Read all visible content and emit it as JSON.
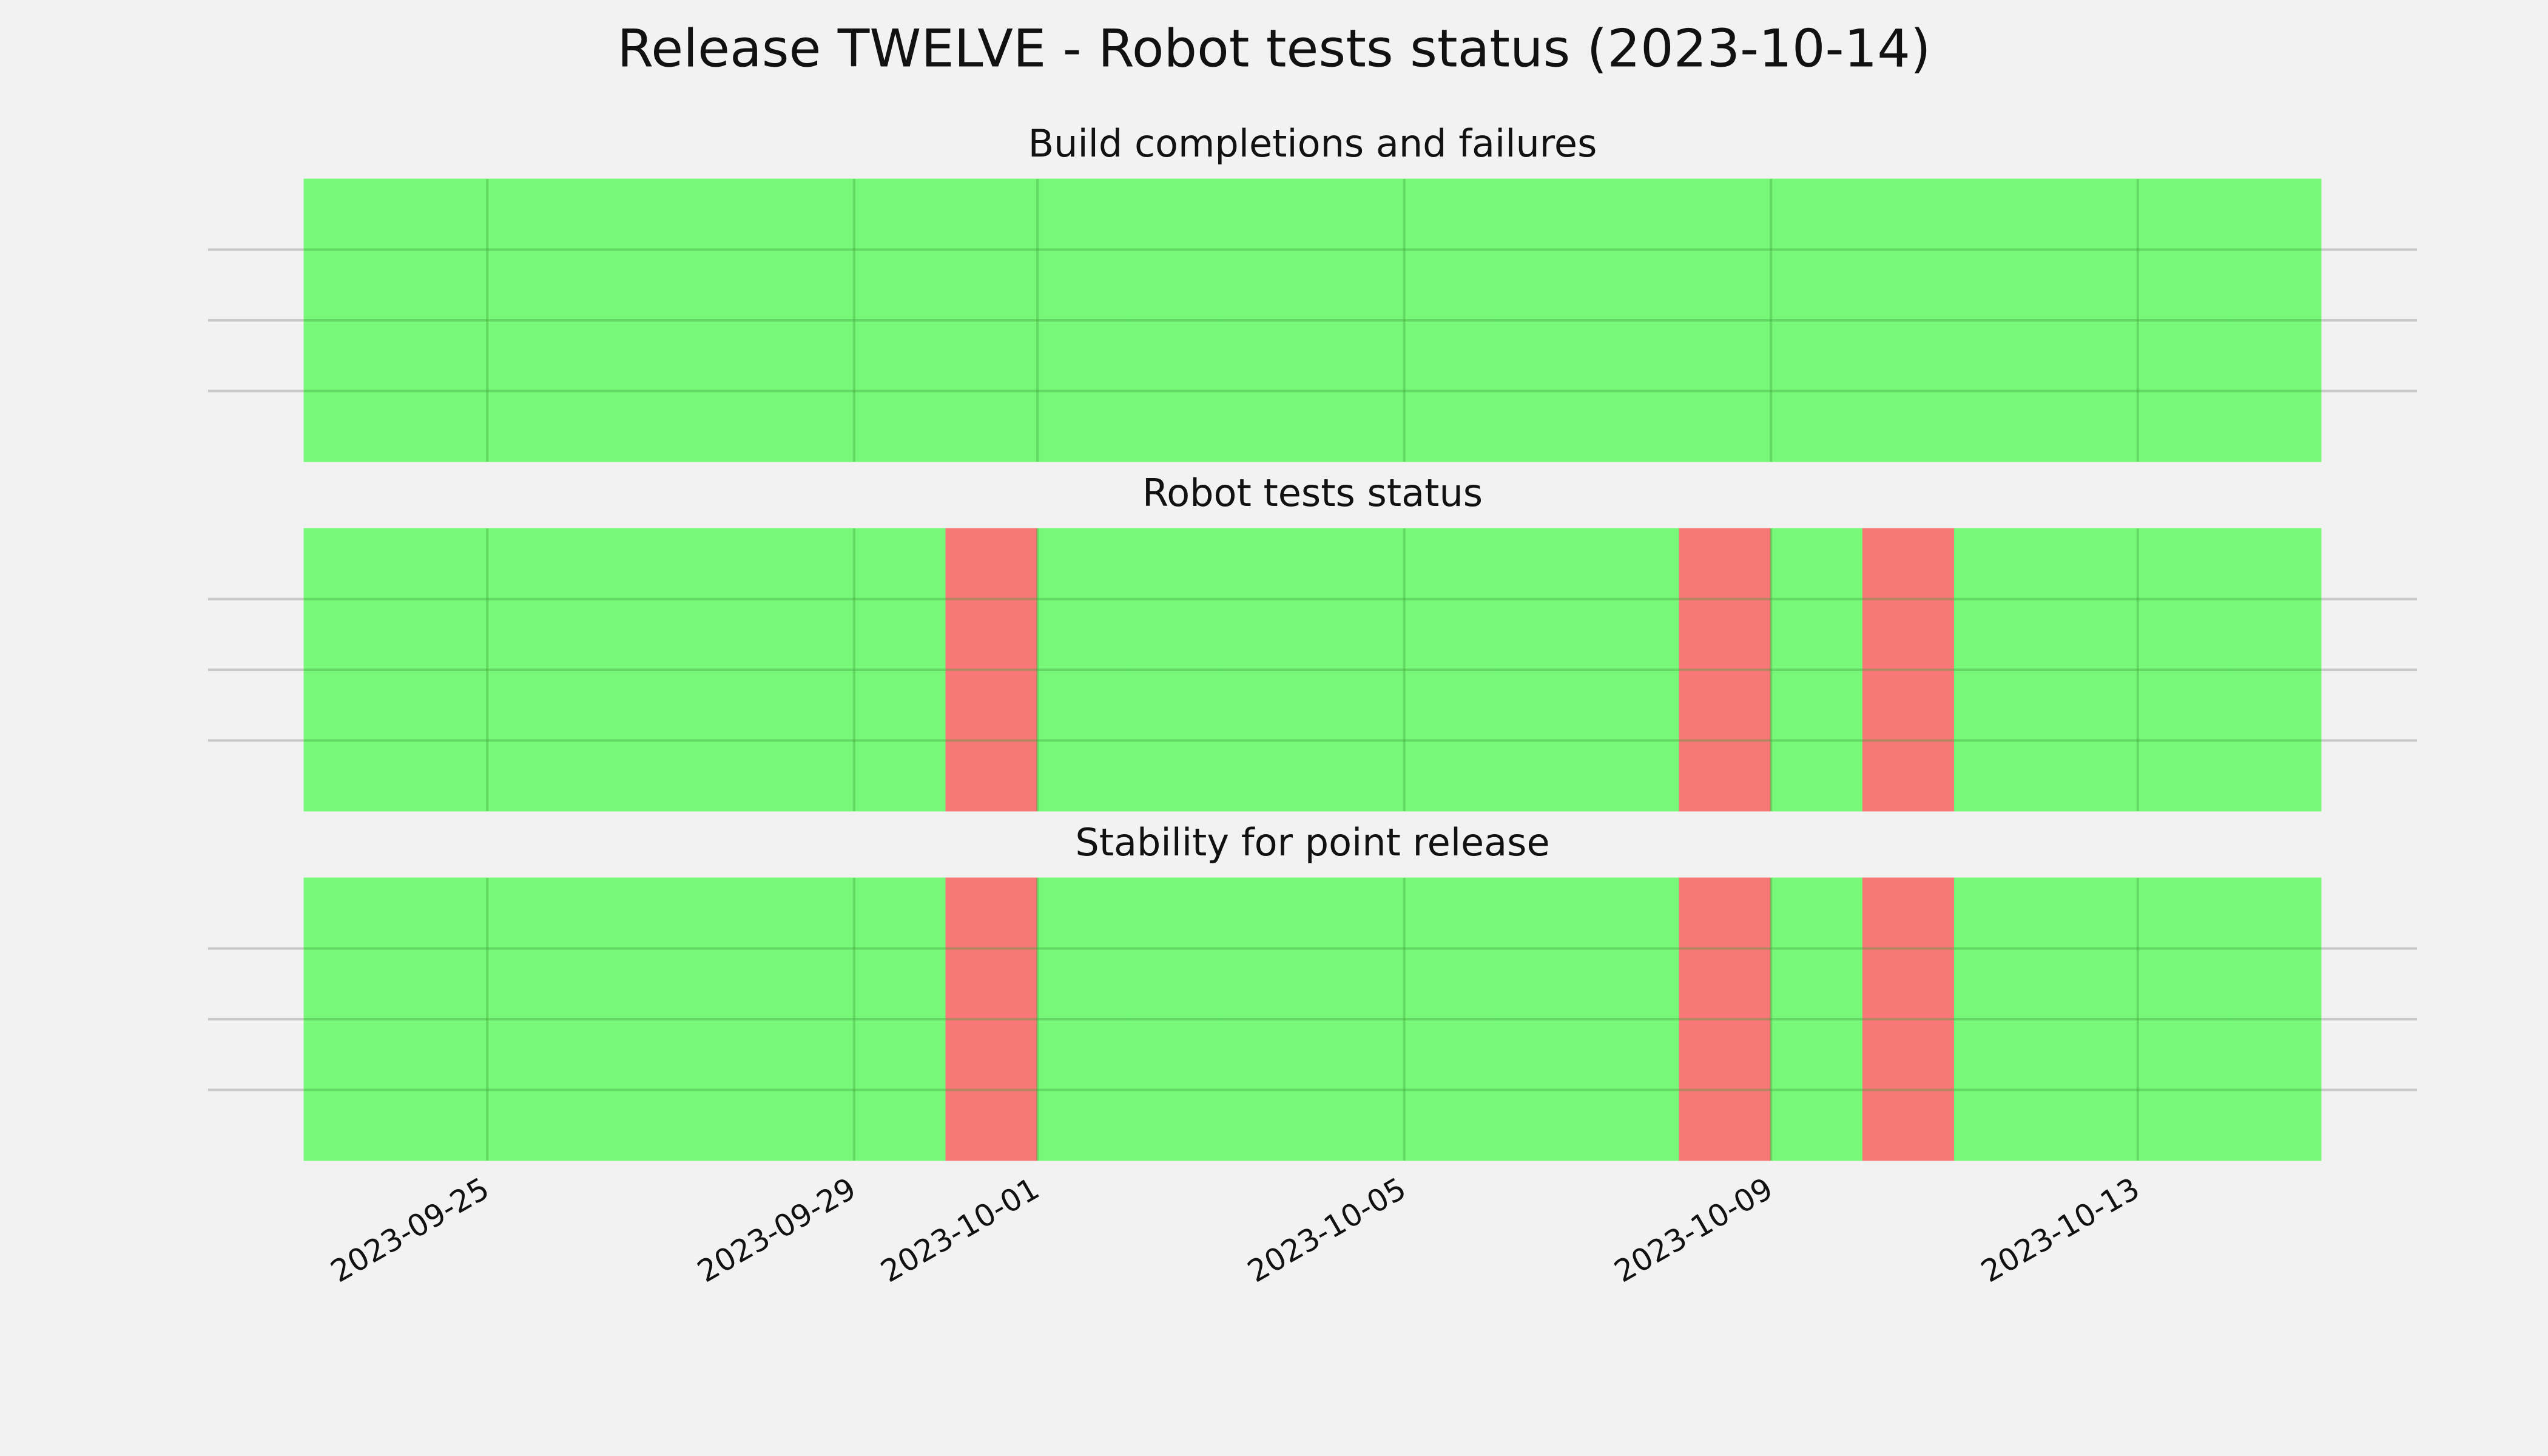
{
  "title": "Release TWELVE - Robot tests status (2023-10-14)",
  "chart_data": [
    {
      "type": "bar",
      "title": "Build completions and failures",
      "x": [
        "2023-09-23",
        "2023-09-24",
        "2023-09-25",
        "2023-09-26",
        "2023-09-27",
        "2023-09-28",
        "2023-09-29",
        "2023-09-30",
        "2023-10-01",
        "2023-10-02",
        "2023-10-03",
        "2023-10-04",
        "2023-10-05",
        "2023-10-06",
        "2023-10-07",
        "2023-10-08",
        "2023-10-09",
        "2023-10-10",
        "2023-10-11",
        "2023-10-12",
        "2023-10-13",
        "2023-10-14"
      ],
      "series": [
        {
          "color": "#78f878",
          "values": [
            1,
            1,
            1,
            1,
            1,
            1,
            1,
            1,
            1,
            1,
            1,
            1,
            1,
            1,
            1,
            1,
            1,
            1,
            1,
            1,
            1,
            1
          ]
        },
        {
          "color": "#f87878",
          "values": [
            0,
            0,
            0,
            0,
            0,
            0,
            0,
            0,
            0,
            0,
            0,
            0,
            0,
            0,
            0,
            0,
            0,
            0,
            0,
            0,
            0,
            0
          ]
        }
      ],
      "xlim": [
        "2023-09-23",
        "2023-10-15"
      ],
      "xticks": [
        "2023-09-25",
        "2023-09-29",
        "2023-10-01",
        "2023-10-05",
        "2023-10-09",
        "2023-10-13"
      ],
      "ylim": [
        0,
        1
      ],
      "yticks": [
        0.25,
        0.5,
        0.75
      ],
      "grid": true
    },
    {
      "type": "bar",
      "title": "Robot tests status",
      "x": [
        "2023-09-23",
        "2023-09-24",
        "2023-09-25",
        "2023-09-26",
        "2023-09-27",
        "2023-09-28",
        "2023-09-29",
        "2023-09-30",
        "2023-10-01",
        "2023-10-02",
        "2023-10-03",
        "2023-10-04",
        "2023-10-05",
        "2023-10-06",
        "2023-10-07",
        "2023-10-08",
        "2023-10-09",
        "2023-10-10",
        "2023-10-11",
        "2023-10-12",
        "2023-10-13",
        "2023-10-14"
      ],
      "series": [
        {
          "color": "#78f878",
          "values": [
            1,
            1,
            1,
            1,
            1,
            1,
            1,
            0,
            1,
            1,
            1,
            1,
            1,
            1,
            1,
            0,
            1,
            0,
            1,
            1,
            1,
            1
          ]
        },
        {
          "color": "#f87878",
          "values": [
            0,
            0,
            0,
            0,
            0,
            0,
            0,
            1,
            0,
            0,
            0,
            0,
            0,
            0,
            0,
            1,
            0,
            1,
            0,
            0,
            0,
            0
          ]
        }
      ],
      "xlim": [
        "2023-09-23",
        "2023-10-15"
      ],
      "xticks": [
        "2023-09-25",
        "2023-09-29",
        "2023-10-01",
        "2023-10-05",
        "2023-10-09",
        "2023-10-13"
      ],
      "ylim": [
        0,
        1
      ],
      "yticks": [
        0.25,
        0.5,
        0.75
      ],
      "grid": true
    },
    {
      "type": "bar",
      "title": "Stability for point release",
      "x": [
        "2023-09-23",
        "2023-09-24",
        "2023-09-25",
        "2023-09-26",
        "2023-09-27",
        "2023-09-28",
        "2023-09-29",
        "2023-09-30",
        "2023-10-01",
        "2023-10-02",
        "2023-10-03",
        "2023-10-04",
        "2023-10-05",
        "2023-10-06",
        "2023-10-07",
        "2023-10-08",
        "2023-10-09",
        "2023-10-10",
        "2023-10-11",
        "2023-10-12",
        "2023-10-13",
        "2023-10-14"
      ],
      "series": [
        {
          "color": "#78f878",
          "values": [
            1,
            1,
            1,
            1,
            1,
            1,
            1,
            0,
            1,
            1,
            1,
            1,
            1,
            1,
            1,
            0,
            1,
            0,
            1,
            1,
            1,
            1
          ]
        },
        {
          "color": "#f87878",
          "values": [
            0,
            0,
            0,
            0,
            0,
            0,
            0,
            1,
            0,
            0,
            0,
            0,
            0,
            0,
            0,
            1,
            0,
            1,
            0,
            0,
            0,
            0
          ]
        }
      ],
      "xlim": [
        "2023-09-23",
        "2023-10-15"
      ],
      "xticks": [
        "2023-09-25",
        "2023-09-29",
        "2023-10-01",
        "2023-10-05",
        "2023-10-09",
        "2023-10-13"
      ],
      "ylim": [
        0,
        1
      ],
      "yticks": [
        0.25,
        0.5,
        0.75
      ],
      "grid": true,
      "xtick_labels": true
    }
  ]
}
